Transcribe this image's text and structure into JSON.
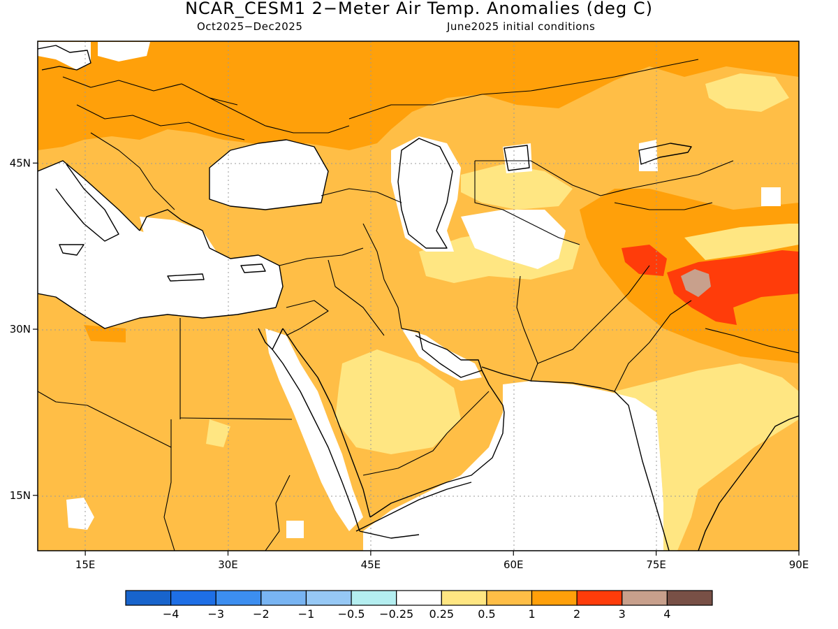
{
  "title": "NCAR_CESM1 2−Meter Air Temp. Anomalies (deg C)",
  "subtitle_left": "Oct2025−Dec2025",
  "subtitle_right": "June2025 initial conditions",
  "lon_ticks": [
    {
      "value": 15,
      "label": "15E"
    },
    {
      "value": 30,
      "label": "30E"
    },
    {
      "value": 45,
      "label": "45E"
    },
    {
      "value": 60,
      "label": "60E"
    },
    {
      "value": 75,
      "label": "75E"
    },
    {
      "value": 90,
      "label": "90E"
    }
  ],
  "lat_ticks": [
    {
      "value": 45,
      "label": "45N"
    },
    {
      "value": 30,
      "label": "30N"
    },
    {
      "value": 15,
      "label": "15N"
    }
  ],
  "map_extent": {
    "lon_min": 10,
    "lon_max": 90,
    "lat_min": 10,
    "lat_max": 56
  },
  "colorbar": {
    "colors": [
      "#1864cc",
      "#1e6fe6",
      "#3c8ef0",
      "#78b4f2",
      "#96c8f5",
      "#b4eef0",
      "#ffffff",
      "#ffe682",
      "#ffbe46",
      "#ffa00a",
      "#ff3c0a",
      "#c8a08c",
      "#785046"
    ],
    "labels": [
      "−4",
      "−3",
      "−2",
      "−1",
      "−0.5",
      "−0.25",
      "0.25",
      "0.5",
      "1",
      "2",
      "3",
      "4"
    ]
  }
}
